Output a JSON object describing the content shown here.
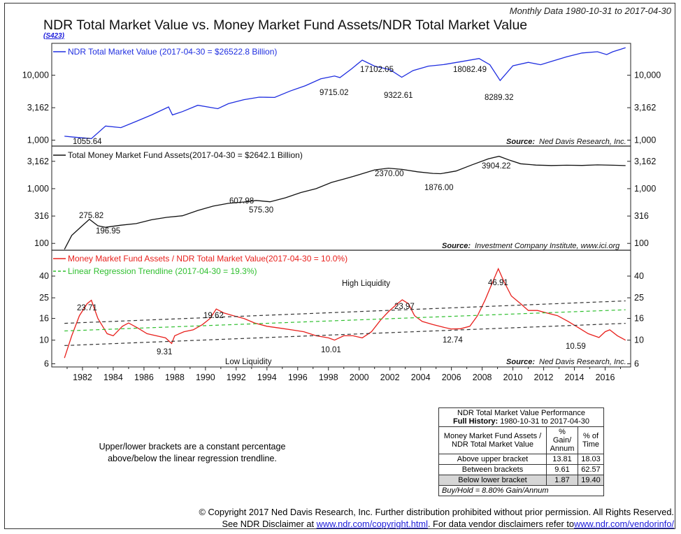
{
  "header": {
    "monthly_label": "Monthly Data 1980-10-31 to 2017-04-30",
    "title": "NDR Total Market Value vs. Money Market Fund Assets/NDR Total Market Value",
    "code": "(S423)"
  },
  "chart_data": [
    {
      "type": "line",
      "panel": "top",
      "scale": "log",
      "series": [
        {
          "name": "NDR Total Market Value (2017-04-30 = $26522.8 Billion)",
          "color": "#1f2ee0",
          "points": [
            [
              1980.83,
              1150
            ],
            [
              1981.5,
              1110
            ],
            [
              1982.58,
              1055.64
            ],
            [
              1983.5,
              1650
            ],
            [
              1984.5,
              1560
            ],
            [
              1985.5,
              1950
            ],
            [
              1986.5,
              2450
            ],
            [
              1987.6,
              3250
            ],
            [
              1987.85,
              2450
            ],
            [
              1988.5,
              2750
            ],
            [
              1989.5,
              3450
            ],
            [
              1990.8,
              3050
            ],
            [
              1991.5,
              3650
            ],
            [
              1992.5,
              4200
            ],
            [
              1993.5,
              4600
            ],
            [
              1994.5,
              4550
            ],
            [
              1995.5,
              5700
            ],
            [
              1996.5,
              6900
            ],
            [
              1997.5,
              8800
            ],
            [
              1998.4,
              9715.02
            ],
            [
              1998.75,
              9200
            ],
            [
              1999.5,
              12500
            ],
            [
              2000.2,
              17102.05
            ],
            [
              2001.0,
              13800
            ],
            [
              2002.0,
              12200
            ],
            [
              2002.77,
              9322.61
            ],
            [
              2003.5,
              11800
            ],
            [
              2004.5,
              13800
            ],
            [
              2005.5,
              14600
            ],
            [
              2006.5,
              16000
            ],
            [
              2007.8,
              18082.49
            ],
            [
              2008.5,
              14500
            ],
            [
              2009.17,
              8289.32
            ],
            [
              2010.0,
              14000
            ],
            [
              2011.0,
              15800
            ],
            [
              2011.8,
              14500
            ],
            [
              2012.5,
              16300
            ],
            [
              2013.5,
              19200
            ],
            [
              2014.5,
              22000
            ],
            [
              2015.5,
              23000
            ],
            [
              2016.1,
              20800
            ],
            [
              2016.5,
              23000
            ],
            [
              2017.33,
              26522.8
            ]
          ]
        }
      ],
      "y_ticks": [
        "1,000",
        "3,162",
        "10,000"
      ],
      "annotations": [
        "17102.05",
        "18082.49",
        "9715.02",
        "9322.61",
        "8289.32",
        "1055.64"
      ],
      "source": "Ned Davis Research, Inc."
    },
    {
      "type": "line",
      "panel": "middle",
      "scale": "log",
      "series": [
        {
          "name": "Total Money Market Fund Assets(2017-04-30 = $2642.1 Billion)",
          "color": "#111111",
          "points": [
            [
              1980.83,
              78
            ],
            [
              1981.3,
              140
            ],
            [
              1981.9,
              200
            ],
            [
              1982.45,
              275.82
            ],
            [
              1983.0,
              210
            ],
            [
              1983.5,
              196.95
            ],
            [
              1984.5,
              215
            ],
            [
              1985.5,
              230
            ],
            [
              1986.5,
              270
            ],
            [
              1987.5,
              300
            ],
            [
              1988.5,
              320
            ],
            [
              1989.5,
              400
            ],
            [
              1990.5,
              480
            ],
            [
              1991.5,
              540
            ],
            [
              1992.5,
              570
            ],
            [
              1993.3,
              607.98
            ],
            [
              1994.2,
              575.3
            ],
            [
              1995.2,
              680
            ],
            [
              1996.2,
              850
            ],
            [
              1997.2,
              1000
            ],
            [
              1998.2,
              1300
            ],
            [
              1999.2,
              1550
            ],
            [
              2000.0,
              1800
            ],
            [
              2001.0,
              2200
            ],
            [
              2001.9,
              2370
            ],
            [
              2002.8,
              2250
            ],
            [
              2003.8,
              2030
            ],
            [
              2004.8,
              1900
            ],
            [
              2005.3,
              1876
            ],
            [
              2006.3,
              2100
            ],
            [
              2007.3,
              2700
            ],
            [
              2008.4,
              3500
            ],
            [
              2009.1,
              3904.22
            ],
            [
              2009.8,
              3300
            ],
            [
              2010.5,
              2850
            ],
            [
              2011.5,
              2700
            ],
            [
              2012.5,
              2650
            ],
            [
              2013.5,
              2680
            ],
            [
              2014.5,
              2660
            ],
            [
              2015.5,
              2720
            ],
            [
              2016.5,
              2680
            ],
            [
              2017.33,
              2642.1
            ]
          ]
        }
      ],
      "y_ticks": [
        "100",
        "316",
        "1,000",
        "3,162"
      ],
      "annotations": [
        "275.82",
        "196.95",
        "607.98",
        "575.30",
        "2370.00",
        "1876.00",
        "3904.22"
      ],
      "source": "Investment Company Institute, www.ici.org"
    },
    {
      "type": "line",
      "panel": "bottom",
      "scale": "log",
      "x_ticks": [
        "1982",
        "1984",
        "1986",
        "1988",
        "1990",
        "1992",
        "1994",
        "1996",
        "1998",
        "2000",
        "2002",
        "2004",
        "2006",
        "2008",
        "2010",
        "2012",
        "2014",
        "2016"
      ],
      "y_ticks": [
        "6",
        "10",
        "16",
        "25",
        "40"
      ],
      "series": [
        {
          "name": "Money Market Fund Assets / NDR Total Market Value(2017-04-30 = 10.0%)",
          "color": "#e8201c",
          "points": [
            [
              1980.83,
              6.8
            ],
            [
              1981.3,
              11
            ],
            [
              1981.8,
              17
            ],
            [
              1982.3,
              22
            ],
            [
              1982.58,
              23.71
            ],
            [
              1983.0,
              16
            ],
            [
              1983.6,
              11.5
            ],
            [
              1984.0,
              11
            ],
            [
              1984.6,
              13.5
            ],
            [
              1985.0,
              14.5
            ],
            [
              1985.6,
              13
            ],
            [
              1986.2,
              11.5
            ],
            [
              1986.8,
              11
            ],
            [
              1987.4,
              10.5
            ],
            [
              1987.8,
              9.31
            ],
            [
              1988.0,
              11
            ],
            [
              1988.6,
              12
            ],
            [
              1989.2,
              12.5
            ],
            [
              1989.8,
              14
            ],
            [
              1990.3,
              16
            ],
            [
              1990.7,
              19.62
            ],
            [
              1991.2,
              18
            ],
            [
              1991.8,
              17
            ],
            [
              1992.5,
              16
            ],
            [
              1993.2,
              14.5
            ],
            [
              1994.0,
              13.5
            ],
            [
              1994.8,
              13
            ],
            [
              1995.6,
              12.5
            ],
            [
              1996.4,
              12
            ],
            [
              1997.2,
              11
            ],
            [
              1998.0,
              10.5
            ],
            [
              1998.4,
              10.01
            ],
            [
              1999.0,
              11
            ],
            [
              1999.6,
              11
            ],
            [
              2000.2,
              10.5
            ],
            [
              2000.8,
              12
            ],
            [
              2001.4,
              15.5
            ],
            [
              2001.9,
              18.5
            ],
            [
              2002.4,
              21.5
            ],
            [
              2002.8,
              23.97
            ],
            [
              2003.2,
              22
            ],
            [
              2003.6,
              17
            ],
            [
              2004.1,
              15
            ],
            [
              2004.8,
              14
            ],
            [
              2005.5,
              13.2
            ],
            [
              2006.0,
              12.74
            ],
            [
              2006.6,
              12.8
            ],
            [
              2007.2,
              13.5
            ],
            [
              2007.7,
              17
            ],
            [
              2008.2,
              24
            ],
            [
              2008.6,
              33
            ],
            [
              2009.05,
              46.91
            ],
            [
              2009.4,
              36
            ],
            [
              2009.9,
              26
            ],
            [
              2010.5,
              22
            ],
            [
              2011.0,
              19
            ],
            [
              2011.6,
              19
            ],
            [
              2012.2,
              18
            ],
            [
              2012.9,
              17
            ],
            [
              2013.6,
              15
            ],
            [
              2014.3,
              13
            ],
            [
              2014.9,
              11.5
            ],
            [
              2015.6,
              10.59
            ],
            [
              2016.0,
              12
            ],
            [
              2016.3,
              12.5
            ],
            [
              2016.8,
              11
            ],
            [
              2017.33,
              10.0
            ]
          ]
        },
        {
          "name": "Linear Regression Trendline (2017-04-30 = 19.3%)",
          "color": "#2fbf2f",
          "points": [
            [
              1980.83,
              12.2
            ],
            [
              2017.33,
              19.3
            ]
          ]
        },
        {
          "name": "",
          "color": "#333333",
          "points": [
            [
              1980.83,
              14.4
            ],
            [
              2017.33,
              23.4
            ]
          ]
        },
        {
          "name": "",
          "color": "#333333",
          "points": [
            [
              1980.83,
              8.9
            ],
            [
              2017.33,
              14.4
            ]
          ]
        }
      ],
      "annotations": [
        "23.71",
        "9.31",
        "19.62",
        "10.01",
        "23.97",
        "12.74",
        "46.91",
        "10.59"
      ],
      "zone_labels": {
        "high": "High Liquidity",
        "low": "Low Liquidity"
      },
      "source": "Ned Davis Research, Inc."
    }
  ],
  "source_label": "Source:",
  "bracket_note": "Upper/lower brackets are a constant percentage above/below the linear regression trendline.",
  "perf_table": {
    "title": "NDR Total Market Value Performance",
    "full_history_label": "Full History:",
    "full_history_range": "1980-10-31 to 2017-04-30",
    "col1_header": "Money Market Fund Assets / NDR Total Market Value",
    "col2_header": "% Gain/ Annum",
    "col3_header": "% of Time",
    "rows": [
      {
        "label": "Above upper bracket",
        "gain": "13.81",
        "time": "18.03"
      },
      {
        "label": "Between brackets",
        "gain": "9.61",
        "time": "62.57"
      },
      {
        "label": "Below lower bracket",
        "gain": "1.87",
        "time": "19.40"
      }
    ],
    "buy_hold": "Buy/Hold = 8.80% Gain/Annum"
  },
  "footer": {
    "copyright": "© Copyright 2017 Ned Davis Research, Inc. Further distribution prohibited without prior permission. All Rights Reserved.",
    "disclaimer_prefix": "See NDR Disclaimer at ",
    "disclaimer_link": "www.ndr.com/copyright.html",
    "vendor_prefix": ". For data vendor disclaimers refer to",
    "vendor_link": "www.ndr.com/vendorinfo/"
  }
}
